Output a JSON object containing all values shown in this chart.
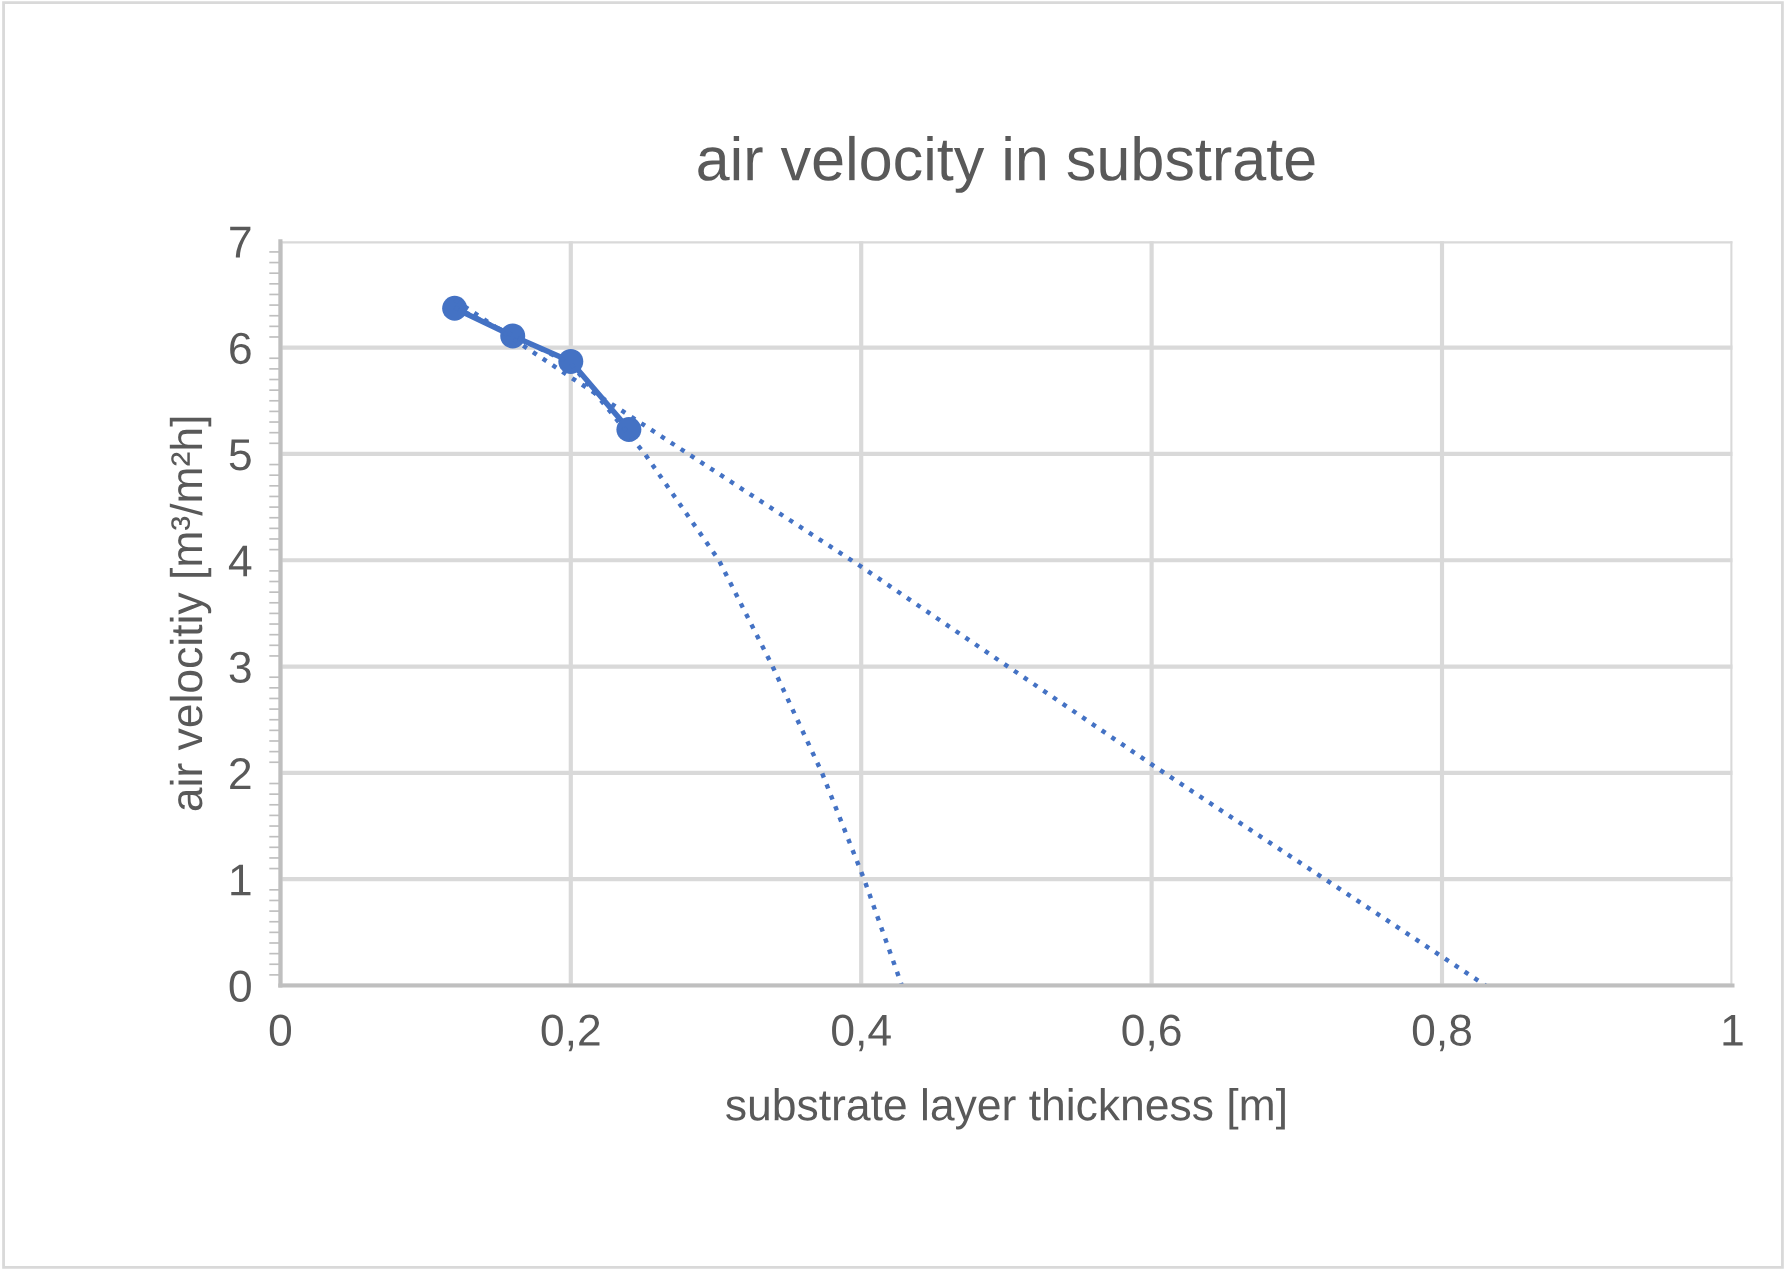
{
  "chart_data": {
    "type": "line",
    "title": "air velocity in substrate",
    "xlabel": "substrate layer thickness [m]",
    "ylabel": "air velocitiy [m³/m²h]",
    "series": [
      {
        "color": "#4472c4",
        "marker": "circle",
        "line_style": "solid",
        "x": [
          0.12,
          0.16,
          0.2,
          0.24
        ],
        "values": [
          6.37,
          6.11,
          5.87,
          5.23
        ]
      },
      {
        "color": "#4472c4",
        "marker": "none",
        "line_style": "dotted",
        "x": [
          0.12,
          0.2,
          0.4,
          0.6,
          0.83
        ],
        "values": [
          6.45,
          5.72,
          3.94,
          2.08,
          0
        ]
      },
      {
        "color": "#4472c4",
        "marker": "none",
        "line_style": "dotted",
        "x": [
          0.12,
          0.2,
          0.251,
          0.302,
          0.339,
          0.373,
          0.402,
          0.428
        ],
        "values": [
          6.38,
          5.85,
          5,
          4,
          3,
          2,
          1,
          0
        ]
      }
    ],
    "xlim": [
      0,
      1
    ],
    "xticks": [
      0,
      {
        "value": 0.2,
        "label": "0,2"
      },
      {
        "value": 0.4,
        "label": "0,4"
      },
      {
        "value": 0.6,
        "label": "0,6"
      },
      {
        "value": 0.8,
        "label": "0,8"
      },
      1
    ],
    "ylim": [
      0,
      7
    ],
    "yticks": [
      0,
      1,
      2,
      3,
      4,
      5,
      6,
      7
    ],
    "grid": true,
    "legend": false
  }
}
